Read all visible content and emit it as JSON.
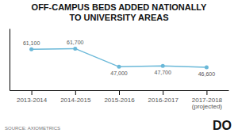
{
  "chart_data": {
    "type": "line",
    "title": "OFF-CAMPUS BEDS ADDED NATIONALLY\nTO UNIVERSITY AREAS",
    "categories": [
      "2013-2014",
      "2014-2015",
      "2015-2016",
      "2016-2017",
      "2017-2018\n(projected)"
    ],
    "values": [
      61100,
      61700,
      47000,
      47700,
      46600
    ],
    "value_labels": [
      "61,100",
      "61,700",
      "47,000",
      "47,700",
      "46,600"
    ],
    "color": "#6ab8d8",
    "marker": "circle",
    "ylim": [
      28000,
      78000
    ],
    "data_labels": true,
    "tick_labels": "x",
    "grid": false,
    "annotations": [
      "SOURCE: AXIOMETRICS",
      "DO"
    ]
  }
}
